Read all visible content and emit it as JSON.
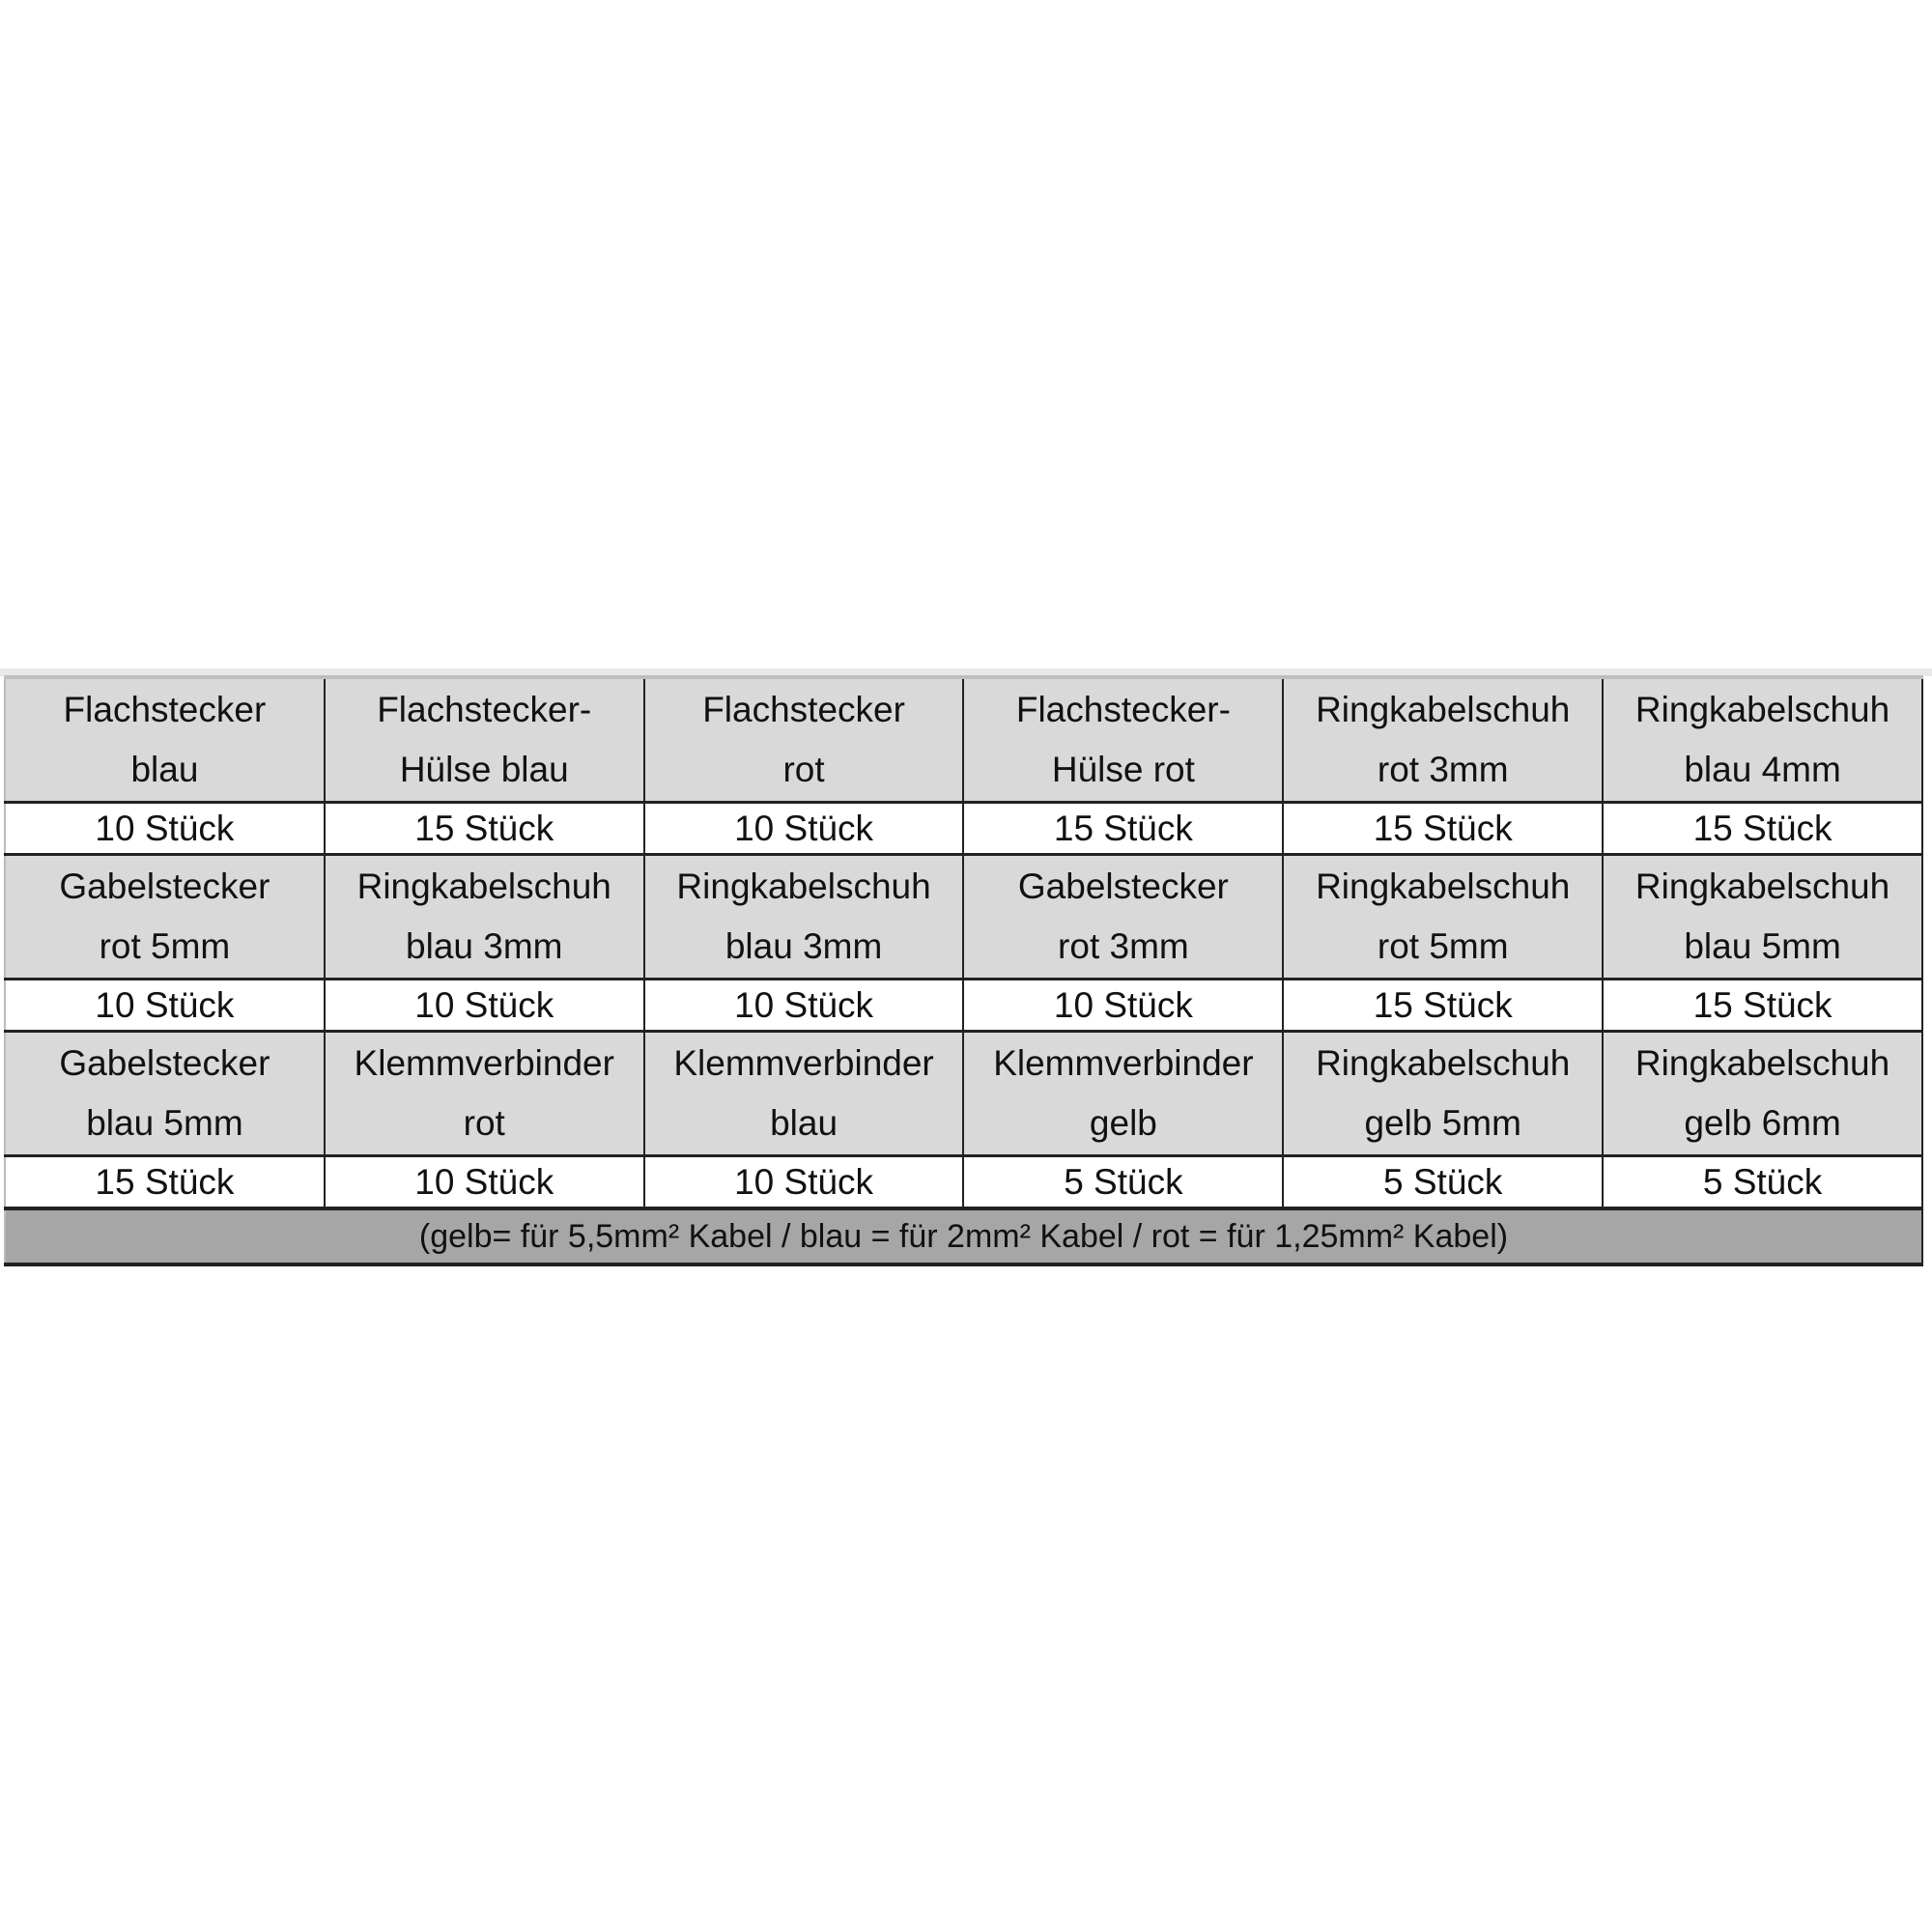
{
  "rows": [
    {
      "names": [
        [
          "Flachstecker",
          "blau"
        ],
        [
          "Flachstecker-",
          "Hülse blau"
        ],
        [
          "Flachstecker",
          "rot"
        ],
        [
          "Flachstecker-",
          "Hülse rot"
        ],
        [
          "Ringkabelschuh",
          "rot 3mm"
        ],
        [
          "Ringkabelschuh",
          "blau 4mm"
        ]
      ],
      "quantities": [
        "10 Stück",
        "15 Stück",
        "10 Stück",
        "15 Stück",
        "15 Stück",
        "15 Stück"
      ]
    },
    {
      "names": [
        [
          "Gabelstecker",
          "rot 5mm"
        ],
        [
          "Ringkabelschuh",
          "blau 3mm"
        ],
        [
          "Ringkabelschuh",
          "blau 3mm"
        ],
        [
          "Gabelstecker",
          "rot 3mm"
        ],
        [
          "Ringkabelschuh",
          "rot 5mm"
        ],
        [
          "Ringkabelschuh",
          "blau 5mm"
        ]
      ],
      "quantities": [
        "10 Stück",
        "10 Stück",
        "10 Stück",
        "10 Stück",
        "15 Stück",
        "15 Stück"
      ]
    },
    {
      "names": [
        [
          "Gabelstecker",
          "blau 5mm"
        ],
        [
          "Klemmverbinder",
          "rot"
        ],
        [
          "Klemmverbinder",
          "blau"
        ],
        [
          "Klemmverbinder",
          "gelb"
        ],
        [
          "Ringkabelschuh",
          "gelb 5mm"
        ],
        [
          "Ringkabelschuh",
          "gelb 6mm"
        ]
      ],
      "quantities": [
        "15 Stück",
        "10 Stück",
        "10 Stück",
        "5 Stück",
        "5 Stück",
        "5 Stück"
      ]
    }
  ],
  "footer": "(gelb= für 5,5mm² Kabel  /  blau = für 2mm² Kabel  /  rot = für 1,25mm² Kabel)",
  "colors": {
    "header_bg": "#d9d9d9",
    "footer_bg": "#a6a6a6",
    "border": "#222222"
  }
}
